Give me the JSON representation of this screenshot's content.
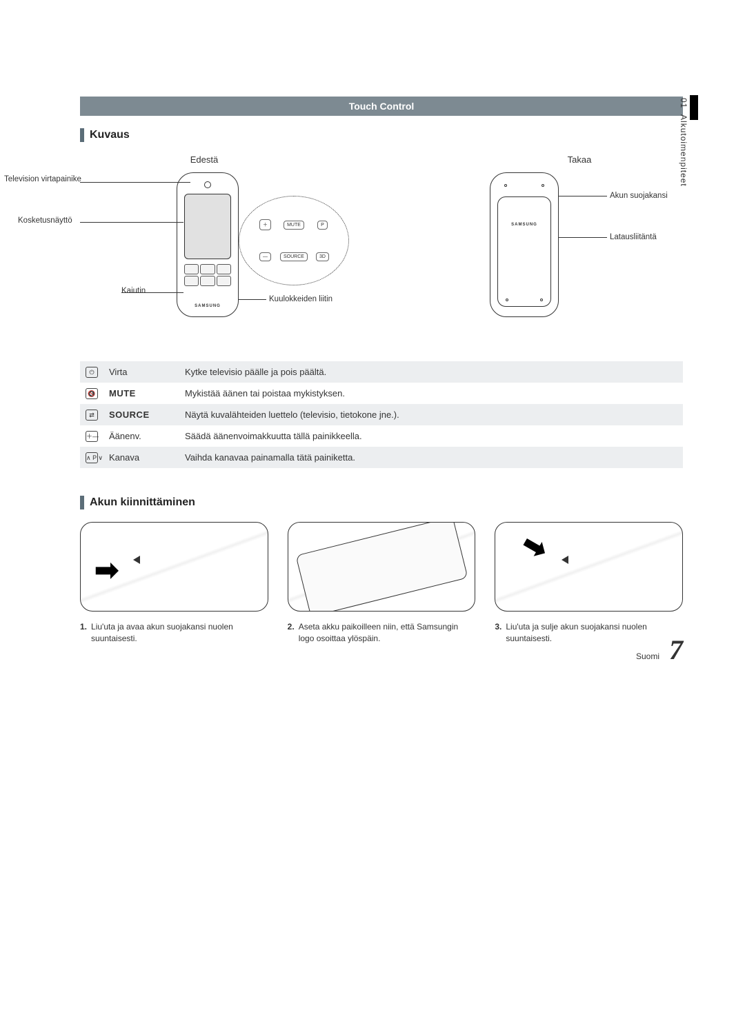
{
  "header": {
    "title": "Touch Control"
  },
  "sideTab": {
    "section_no": "01",
    "section_name": "Alkutoimenpiteet"
  },
  "sections": {
    "kuvaus": "Kuvaus",
    "akun": "Akun kiinnittäminen"
  },
  "diagram": {
    "front_caption": "Edestä",
    "back_caption": "Takaa",
    "front_labels": {
      "power": "Television virtapainike",
      "touchscreen": "Kosketusnäyttö",
      "speaker": "Kaiutin",
      "headphone": "Kuulokkeiden liitin"
    },
    "back_labels": {
      "battery_cover": "Akun suojakansi",
      "charging": "Latausliitäntä"
    },
    "zoom_buttons": {
      "mute": "MUTE",
      "source": "SOURCE",
      "p": "P",
      "threeD": "3D",
      "plus": "＋",
      "minus": "—"
    },
    "brand": "SAMSUNG"
  },
  "button_table": [
    {
      "icon": "⏻",
      "name": "Virta",
      "desc": "Kytke televisio päälle ja pois päältä.",
      "shade": true,
      "caps": false
    },
    {
      "icon": "🔇",
      "name": "MUTE",
      "desc": "Mykistää äänen tai poistaa mykistyksen.",
      "shade": false,
      "caps": true
    },
    {
      "icon": "⇄",
      "name": "SOURCE",
      "desc": "Näytä kuvalähteiden luettelo (televisio, tietokone jne.).",
      "shade": true,
      "caps": true
    },
    {
      "icon": "＋\n—",
      "name": "Äänenv.",
      "desc": "Säädä äänenvoimakkuutta tällä painikkeella.",
      "shade": false,
      "caps": false
    },
    {
      "icon": "∧ P ∨",
      "name": "Kanava",
      "desc": "Vaihda kanavaa painamalla tätä painiketta.",
      "shade": true,
      "caps": false
    }
  ],
  "steps": [
    {
      "num": "1.",
      "text": "Liu'uta ja avaa akun suojakansi nuolen suuntaisesti."
    },
    {
      "num": "2.",
      "text": "Aseta akku paikoilleen niin, että Samsungin logo osoittaa ylöspäin."
    },
    {
      "num": "3.",
      "text": "Liu'uta ja sulje akun suojakansi nuolen suuntaisesti."
    }
  ],
  "footer": {
    "lang": "Suomi",
    "page": "7"
  },
  "colors": {
    "header_bg": "#7d8a92",
    "shade_bg": "#eceef0",
    "section_bar": "#5b6d78"
  }
}
